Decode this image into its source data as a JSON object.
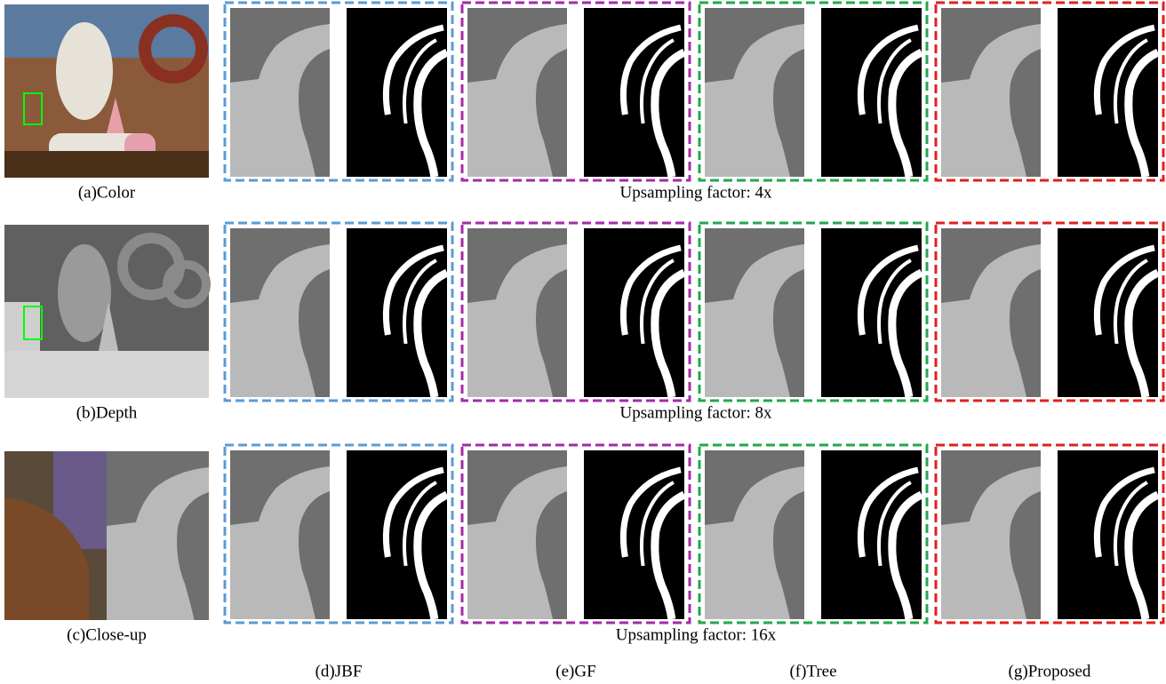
{
  "rows": [
    {
      "label": "(a)Color",
      "caption": "Upsampling factor: 4x"
    },
    {
      "label": "(b)Depth",
      "caption": "Upsampling factor: 8x"
    },
    {
      "label": "(c)Close-up",
      "caption": "Upsampling factor: 16x"
    }
  ],
  "methods": [
    {
      "label": "(d)JBF",
      "color": "#5b9bd5"
    },
    {
      "label": "(e)GF",
      "color": "#a52aa8"
    },
    {
      "label": "(f)Tree",
      "color": "#22a84a"
    },
    {
      "label": "(g)Proposed",
      "color": "#e02020"
    }
  ]
}
